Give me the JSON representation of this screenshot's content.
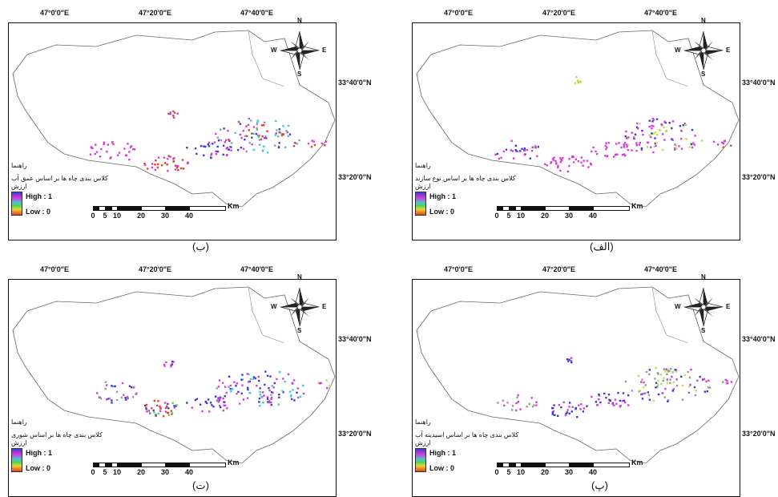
{
  "coords": {
    "lon": [
      "47°0'0\"E",
      "47°20'0\"E",
      "47°40'0\"E"
    ],
    "lat": [
      "33°40'0\"N",
      "33°20'0\"N"
    ]
  },
  "compass": {
    "n": "N",
    "s": "S",
    "e": "E",
    "w": "W"
  },
  "legend": {
    "title": "راهنما",
    "value_label": "ارزش",
    "high": "High : 1",
    "low": "Low : 0"
  },
  "scalebar": {
    "ticks": [
      "0",
      "5",
      "10",
      "20",
      "30",
      "40"
    ],
    "unit": "Km"
  },
  "panels": [
    {
      "id": "b",
      "caption": "(ب)",
      "legend_text": "کلاس بندی چاه ها بر اساس عمق آب"
    },
    {
      "id": "alef",
      "caption": "(الف)",
      "legend_text": "کلاس بندی چاه ها بر اساس نوع سازند"
    },
    {
      "id": "t",
      "caption": "(ت)",
      "legend_text": "کلاس بندی چاه ها بر اساس شوری"
    },
    {
      "id": "p",
      "caption": "(پ)",
      "legend_text": "کلاس بندی چاه ها بر اساس اسیدیته آب"
    }
  ],
  "colors": {
    "high": "#3b3bd6",
    "mid": "#d93bd6",
    "low": "#e8431f",
    "green": "#52d64a",
    "yellow": "#b8e04a",
    "cyan": "#44c4d6",
    "grey": "#999999"
  }
}
